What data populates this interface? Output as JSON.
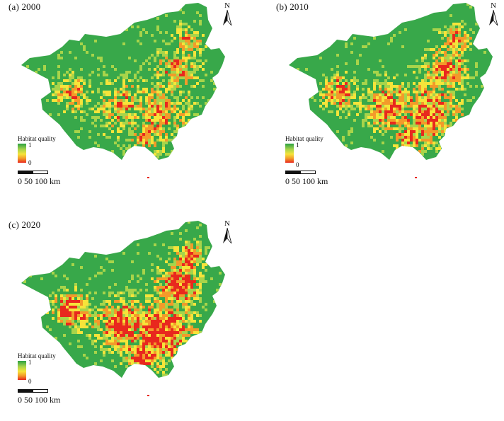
{
  "panels": [
    {
      "title": "(a) 2000",
      "seed": 11
    },
    {
      "title": "(b) 2010",
      "seed": 23
    },
    {
      "title": "(c) 2020",
      "seed": 37
    }
  ],
  "north_label": "N",
  "legend": {
    "title": "Habitat quality",
    "max": "1",
    "min": "0",
    "colors": [
      "#2aa043",
      "#a8d44a",
      "#f6e43a",
      "#f39a2a",
      "#e8281e"
    ]
  },
  "scale_bar": {
    "text": "0   50 100 km"
  }
}
